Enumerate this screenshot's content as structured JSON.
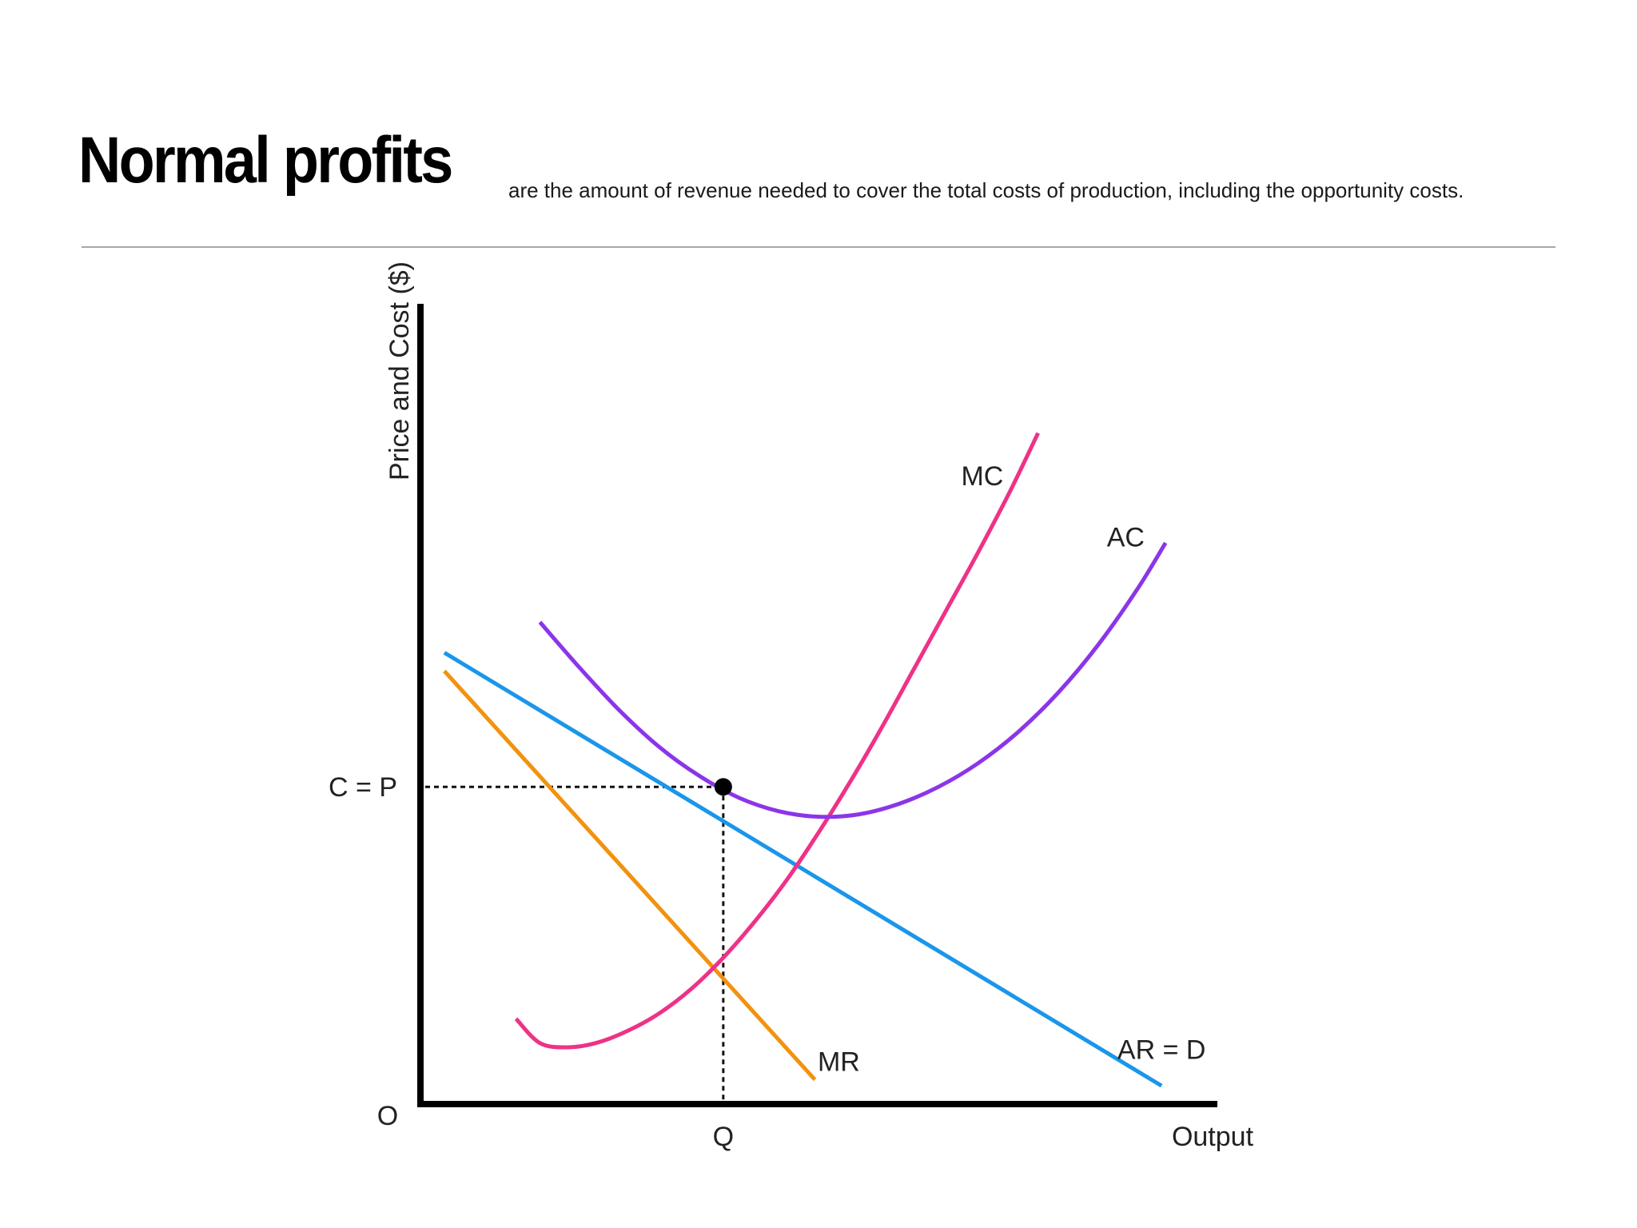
{
  "slide": {
    "title": "Normal profits",
    "subtitle": "are the amount of revenue needed to cover the total costs of production, including the opportunity costs."
  },
  "chart_data": {
    "type": "line",
    "title": "",
    "xlabel": "Output",
    "ylabel": "Price and Cost ($)",
    "origin_label": "O",
    "xlim": [
      0,
      100
    ],
    "ylim": [
      0,
      100
    ],
    "grid": false,
    "legend": "none",
    "series": [
      {
        "name": "AR = D",
        "color": "#1a96ea",
        "x": [
          3,
          93
        ],
        "y": [
          74,
          3
        ]
      },
      {
        "name": "MR",
        "color": "#f2920e",
        "x": [
          3,
          49.5
        ],
        "y": [
          71,
          4
        ]
      },
      {
        "name": "MC",
        "color": "#ee3288",
        "x": [
          12,
          15,
          18.5,
          22,
          26,
          30,
          34,
          38,
          42,
          46,
          50,
          54,
          58,
          62,
          66,
          70,
          74,
          77.5
        ],
        "y": [
          14,
          10,
          9.3,
          10,
          12,
          14.9,
          18.9,
          24,
          30,
          36.8,
          44.6,
          53,
          62,
          71.5,
          81,
          90.5,
          100.5,
          110
        ]
      },
      {
        "name": "AC",
        "color": "#8c35e8",
        "x": [
          15,
          20,
          25,
          30,
          35,
          40,
          45,
          50,
          55,
          60,
          65,
          70,
          75,
          80,
          85,
          90,
          93.5
        ],
        "y": [
          79,
          71.5,
          64.5,
          58.5,
          53.8,
          50.2,
          48,
          47.1,
          47.5,
          49.2,
          52,
          55.9,
          61,
          67.4,
          75.2,
          84.5,
          92
        ]
      }
    ],
    "point": {
      "x": 38,
      "y": 52
    },
    "x_ticks": [
      {
        "x": 38,
        "label": "Q"
      }
    ],
    "y_ticks": [
      {
        "y": 52,
        "label": "C = P"
      }
    ],
    "annotations": [
      {
        "text": "MC",
        "x": 70.5,
        "y": 103
      },
      {
        "text": "AC",
        "x": 88.5,
        "y": 93
      },
      {
        "text": "AR = D",
        "x": 93,
        "y": 9
      },
      {
        "text": "MR",
        "x": 52.5,
        "y": 7
      }
    ]
  }
}
